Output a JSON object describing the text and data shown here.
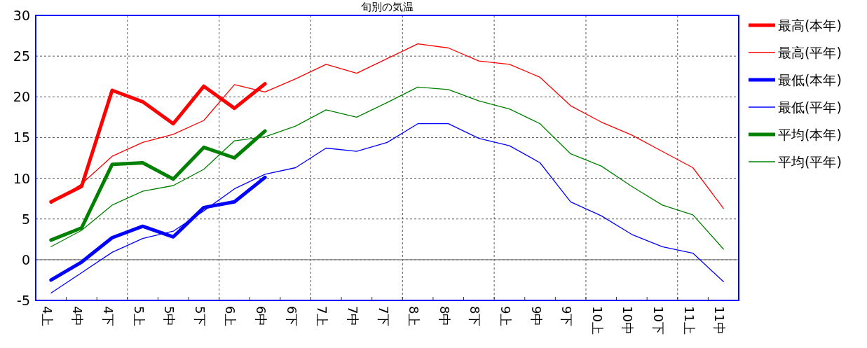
{
  "chart_data": {
    "type": "line",
    "title": "旬別の気温",
    "categories": [
      "4上",
      "4中",
      "4下",
      "5上",
      "5中",
      "5下",
      "6上",
      "6中",
      "6下",
      "7上",
      "7中",
      "7下",
      "8上",
      "8中",
      "8下",
      "9上",
      "9中",
      "9下",
      "10上",
      "10中",
      "10下",
      "11上",
      "11中"
    ],
    "series": [
      {
        "name": "最高(本年)",
        "color": "#ff0000",
        "values": [
          7.1,
          9.0,
          20.8,
          19.4,
          16.7,
          21.3,
          18.6,
          21.6,
          null,
          null,
          null,
          null,
          null,
          null,
          null,
          null,
          null,
          null,
          null,
          null,
          null,
          null,
          null
        ]
      },
      {
        "name": "最高(平年)",
        "color": "#ff0000",
        "values": [
          6.9,
          9.3,
          12.7,
          14.4,
          15.4,
          17.1,
          21.5,
          20.6,
          22.2,
          24.0,
          22.9,
          24.7,
          26.5,
          26.0,
          24.4,
          24.0,
          22.4,
          18.9,
          16.9,
          15.3,
          13.3,
          11.3,
          6.3
        ]
      },
      {
        "name": "最低(本年)",
        "color": "#0000ff",
        "values": [
          -2.5,
          -0.3,
          2.7,
          4.1,
          2.8,
          6.4,
          7.1,
          10.1,
          null,
          null,
          null,
          null,
          null,
          null,
          null,
          null,
          null,
          null,
          null,
          null,
          null,
          null,
          null
        ]
      },
      {
        "name": "最低(平年)",
        "color": "#0000ff",
        "values": [
          -4.1,
          -1.6,
          0.9,
          2.6,
          3.5,
          6.0,
          8.7,
          10.5,
          11.3,
          13.7,
          13.3,
          14.4,
          16.7,
          16.7,
          14.9,
          14.0,
          11.9,
          7.1,
          5.4,
          3.1,
          1.6,
          0.8,
          -2.7
        ]
      },
      {
        "name": "平均(本年)",
        "color": "#008000",
        "values": [
          2.4,
          3.9,
          11.7,
          11.9,
          9.9,
          13.8,
          12.5,
          15.8,
          null,
          null,
          null,
          null,
          null,
          null,
          null,
          null,
          null,
          null,
          null,
          null,
          null,
          null,
          null
        ]
      },
      {
        "name": "平均(平年)",
        "color": "#008000",
        "values": [
          1.6,
          3.6,
          6.7,
          8.4,
          9.1,
          11.1,
          14.6,
          15.1,
          16.4,
          18.4,
          17.5,
          19.3,
          21.2,
          20.9,
          19.5,
          18.5,
          16.7,
          13.0,
          11.5,
          9.0,
          6.7,
          5.5,
          1.3
        ]
      }
    ],
    "ylim": [
      -5,
      30
    ],
    "yticks": [
      -5,
      0,
      5,
      10,
      15,
      20,
      25,
      30
    ],
    "ref_lines": [
      {
        "axis": "y",
        "value": 0,
        "color": "#808080"
      }
    ],
    "grid": true,
    "legend": "right",
    "marker": "none",
    "line_style": "solid"
  }
}
